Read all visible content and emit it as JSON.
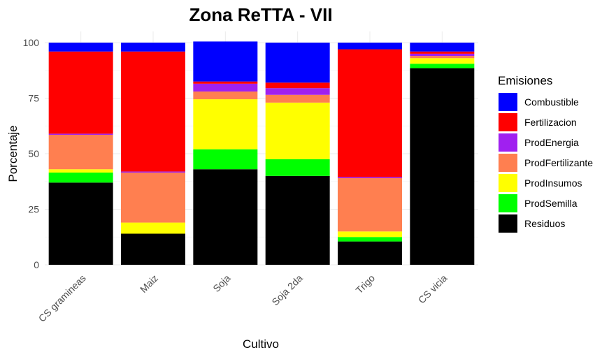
{
  "chart_data": {
    "type": "bar",
    "stacked": true,
    "title": "Zona ReTTA - VII",
    "xlabel": "Cultivo",
    "ylabel": "Porcentaje",
    "ylim": [
      0,
      100
    ],
    "yticks": [
      0,
      25,
      50,
      75,
      100
    ],
    "categories": [
      "CS gramineas",
      "Maiz",
      "Soja",
      "Soja 2da",
      "Trigo",
      "CS vicia"
    ],
    "grid": true,
    "legend": {
      "title": "Emisiones",
      "position": "right",
      "order": [
        "Combustible",
        "Fertilizacion",
        "ProdEnergia",
        "ProdFertilizante",
        "ProdInsumos",
        "ProdSemilla",
        "Residuos"
      ]
    },
    "series": [
      {
        "name": "Residuos",
        "color": "#000000",
        "values": [
          37,
          14,
          43,
          40,
          10.5,
          88.5
        ]
      },
      {
        "name": "ProdSemilla",
        "color": "#00ff00",
        "values": [
          4.5,
          0,
          9,
          7.5,
          2,
          2
        ]
      },
      {
        "name": "ProdInsumos",
        "color": "#ffff00",
        "values": [
          1.5,
          5,
          22.5,
          25.5,
          2.5,
          2.5
        ]
      },
      {
        "name": "ProdFertilizante",
        "color": "#ff7f50",
        "values": [
          15.5,
          22.5,
          3.5,
          3.5,
          24,
          1
        ]
      },
      {
        "name": "ProdEnergia",
        "color": "#a020f0",
        "values": [
          0.5,
          0.5,
          3.5,
          3,
          0.5,
          1
        ]
      },
      {
        "name": "Fertilizacion",
        "color": "#ff0000",
        "values": [
          37,
          54,
          1,
          2.5,
          57.5,
          1
        ]
      },
      {
        "name": "Combustible",
        "color": "#0000ff",
        "values": [
          4,
          4,
          18,
          18,
          3,
          4
        ]
      }
    ]
  }
}
